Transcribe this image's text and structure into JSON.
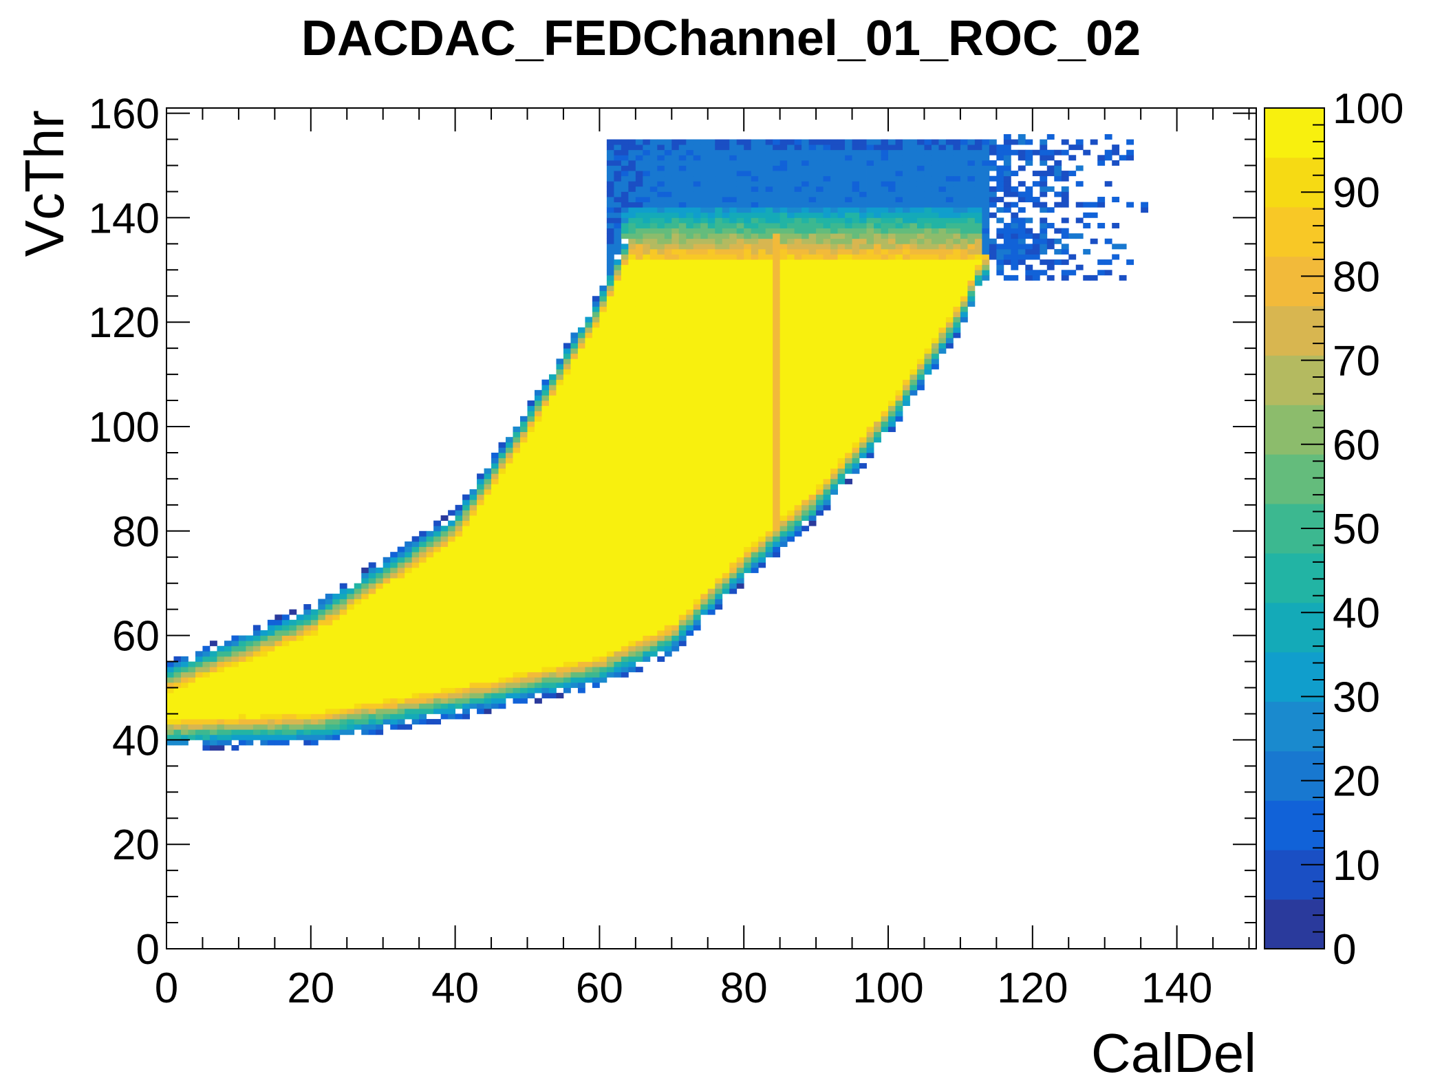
{
  "chart_data": {
    "type": "heatmap",
    "title": "DACDAC_FEDChannel_01_ROC_02",
    "xlabel": "CalDel",
    "ylabel": "VcThr",
    "xlim": [
      0,
      151
    ],
    "ylim": [
      0,
      161
    ],
    "xticks": [
      0,
      20,
      40,
      60,
      80,
      100,
      120,
      140
    ],
    "yticks": [
      0,
      20,
      40,
      60,
      80,
      100,
      120,
      140,
      160
    ],
    "zlim": [
      0,
      100
    ],
    "zticks": [
      0,
      10,
      20,
      30,
      40,
      50,
      60,
      70,
      80,
      90,
      100
    ],
    "palette": [
      "#2a3a9c",
      "#1a4fc4",
      "#1162d8",
      "#1878d0",
      "#1a8ace",
      "#109ecc",
      "#14aab8",
      "#22b4a4",
      "#3cb890",
      "#64bc7c",
      "#8cbc6c",
      "#b4ba60",
      "#d8b650",
      "#f2ba3a",
      "#f8c826",
      "#f6da14",
      "#f8f00e"
    ],
    "description_regions": {
      "plateau": {
        "lower_edge": [
          [
            0,
            44
          ],
          [
            20,
            45
          ],
          [
            40,
            50
          ],
          [
            60,
            56
          ],
          [
            70,
            62
          ],
          [
            80,
            76
          ],
          [
            90,
            88
          ],
          [
            100,
            104
          ],
          [
            110,
            124
          ],
          [
            113,
            133
          ]
        ],
        "upper_edge": [
          [
            0,
            49
          ],
          [
            20,
            60
          ],
          [
            40,
            78
          ],
          [
            50,
            98
          ],
          [
            60,
            120
          ],
          [
            64,
            132
          ],
          [
            85,
            132
          ],
          [
            113,
            132
          ]
        ],
        "value": 100
      },
      "band_top": {
        "x_range": [
          63,
          113
        ],
        "y_range": [
          140,
          155
        ],
        "value": 20
      },
      "gap_column": {
        "x": 84.5,
        "y_range": [
          80,
          137
        ],
        "value": 78
      }
    }
  }
}
